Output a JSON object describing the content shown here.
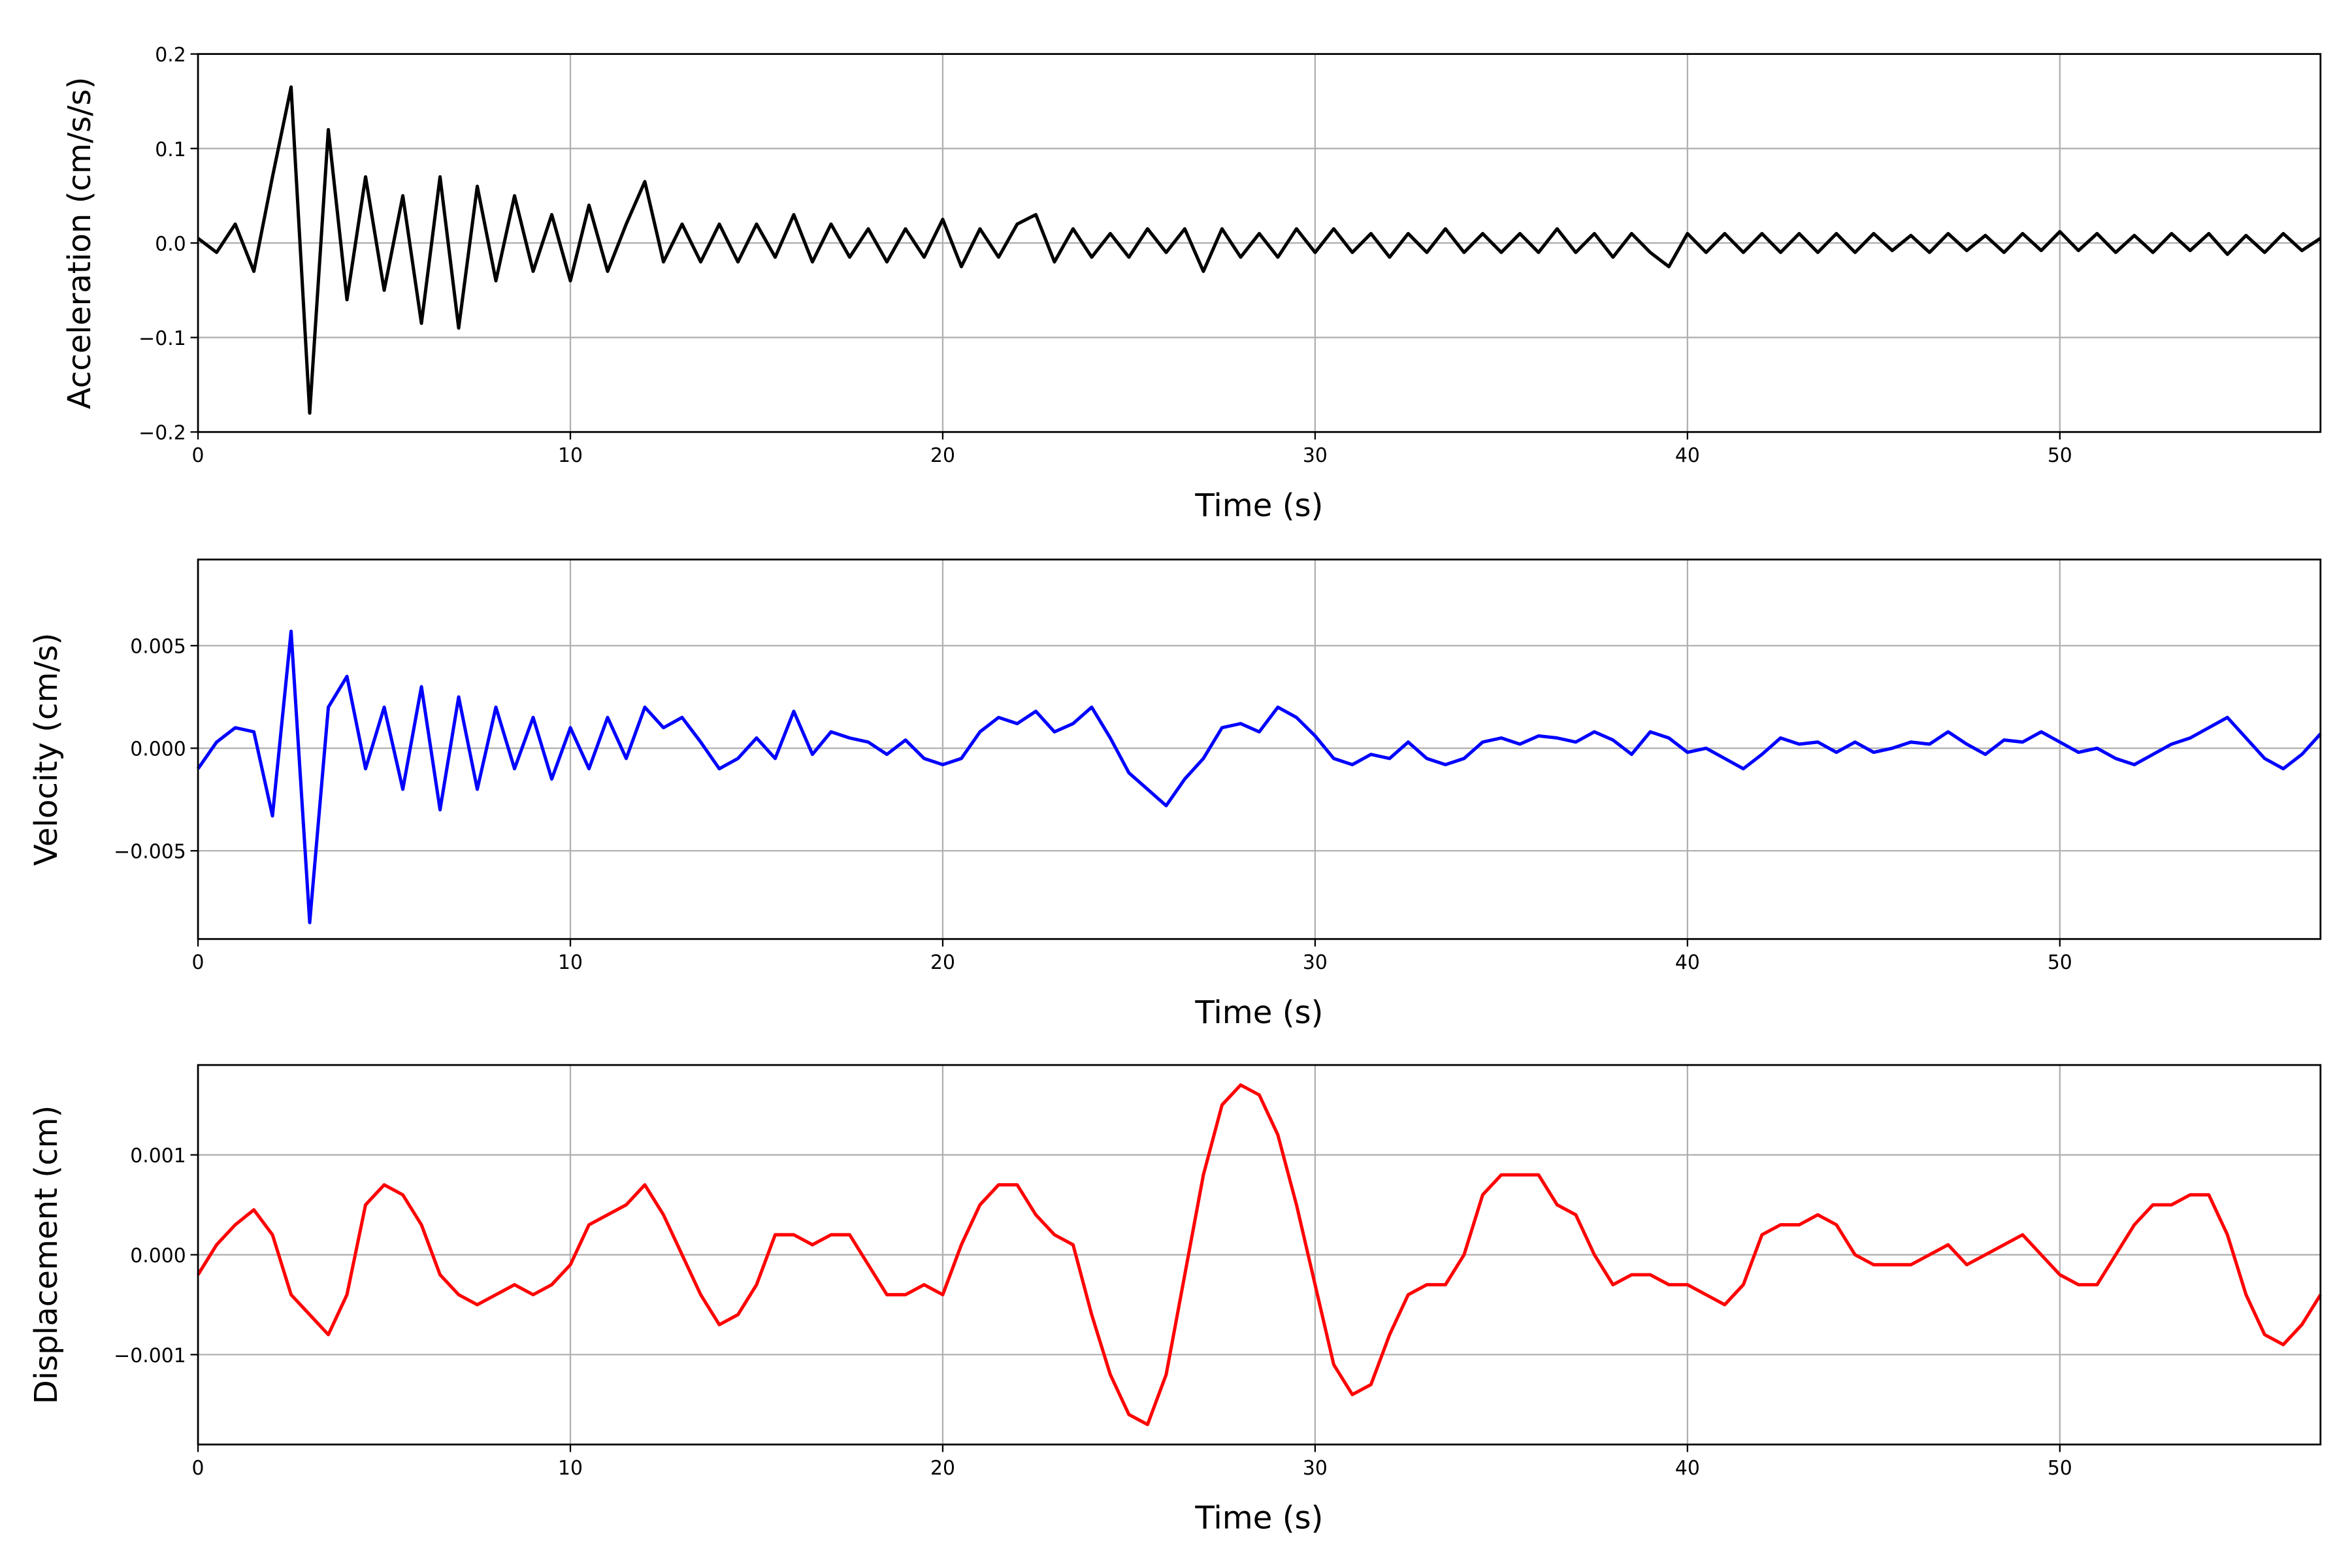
{
  "chart_data": [
    {
      "type": "line",
      "xlabel": "Time (s)",
      "ylabel": "Acceleration (cm/s/s)",
      "xlim": [
        0,
        57
      ],
      "xticks": [
        0,
        10,
        20,
        30,
        40,
        50
      ],
      "ylim": [
        -0.2,
        0.2
      ],
      "yticks": [
        {
          "value": -0.2,
          "label": "−0.2"
        },
        {
          "value": -0.1,
          "label": "−0.1"
        },
        {
          "value": 0,
          "label": "0.0"
        },
        0.1,
        0.2
      ],
      "grid": true,
      "x": [
        0,
        0.5,
        1,
        1.5,
        2,
        2.5,
        3,
        3.5,
        4,
        4.5,
        5,
        5.5,
        6,
        6.5,
        7,
        7.5,
        8,
        8.5,
        9,
        9.5,
        10,
        10.5,
        11,
        11.5,
        12,
        12.5,
        13,
        13.5,
        14,
        14.5,
        15,
        15.5,
        16,
        16.5,
        17,
        17.5,
        18,
        18.5,
        19,
        19.5,
        20,
        20.5,
        21,
        21.5,
        22,
        22.5,
        23,
        23.5,
        24,
        24.5,
        25,
        25.5,
        26,
        26.5,
        27,
        27.5,
        28,
        28.5,
        29,
        29.5,
        30,
        30.5,
        31,
        31.5,
        32,
        32.5,
        33,
        33.5,
        34,
        34.5,
        35,
        35.5,
        36,
        36.5,
        37,
        37.5,
        38,
        38.5,
        39,
        39.5,
        40,
        40.5,
        41,
        41.5,
        42,
        42.5,
        43,
        43.5,
        44,
        44.5,
        45,
        45.5,
        46,
        46.5,
        47,
        47.5,
        48,
        48.5,
        49,
        49.5,
        50,
        50.5,
        51,
        51.5,
        52,
        52.5,
        53,
        53.5,
        54,
        54.5,
        55,
        55.5,
        56,
        56.5,
        57
      ],
      "series": [
        {
          "color": "#000000",
          "values": [
            0.005,
            -0.01,
            0.02,
            -0.03,
            0.07,
            0.165,
            -0.18,
            0.12,
            -0.06,
            0.07,
            -0.05,
            0.05,
            -0.085,
            0.07,
            -0.09,
            0.06,
            -0.04,
            0.05,
            -0.03,
            0.03,
            -0.04,
            0.04,
            -0.03,
            0.02,
            0.065,
            -0.02,
            0.02,
            -0.02,
            0.02,
            -0.02,
            0.02,
            -0.015,
            0.03,
            -0.02,
            0.02,
            -0.015,
            0.015,
            -0.02,
            0.015,
            -0.015,
            0.025,
            -0.025,
            0.015,
            -0.015,
            0.02,
            0.03,
            -0.02,
            0.015,
            -0.015,
            0.01,
            -0.015,
            0.015,
            -0.01,
            0.015,
            -0.03,
            0.015,
            -0.015,
            0.01,
            -0.015,
            0.015,
            -0.01,
            0.015,
            -0.01,
            0.01,
            -0.015,
            0.01,
            -0.01,
            0.015,
            -0.01,
            0.01,
            -0.01,
            0.01,
            -0.01,
            0.015,
            -0.01,
            0.01,
            -0.015,
            0.01,
            -0.01,
            -0.025,
            0.01,
            -0.01,
            0.01,
            -0.01,
            0.01,
            -0.01,
            0.01,
            -0.01,
            0.01,
            -0.01,
            0.01,
            -0.008,
            0.008,
            -0.01,
            0.01,
            -0.008,
            0.008,
            -0.01,
            0.01,
            -0.008,
            0.012,
            -0.008,
            0.01,
            -0.01,
            0.008,
            -0.01,
            0.01,
            -0.008,
            0.01,
            -0.012,
            0.008,
            -0.01,
            0.01,
            -0.008,
            0.005
          ]
        }
      ]
    },
    {
      "type": "line",
      "xlabel": "Time (s)",
      "ylabel": "Velocity (cm/s)",
      "xlim": [
        0,
        57
      ],
      "xticks": [
        0,
        10,
        20,
        30,
        40,
        50
      ],
      "ylim": [
        -0.0093,
        0.0092
      ],
      "yticks": [
        {
          "value": -0.005,
          "label": "−0.005"
        },
        {
          "value": 0,
          "label": "0.000"
        },
        0.005
      ],
      "grid": true,
      "x": [
        0,
        0.5,
        1,
        1.5,
        2,
        2.5,
        3,
        3.5,
        4,
        4.5,
        5,
        5.5,
        6,
        6.5,
        7,
        7.5,
        8,
        8.5,
        9,
        9.5,
        10,
        10.5,
        11,
        11.5,
        12,
        12.5,
        13,
        13.5,
        14,
        14.5,
        15,
        15.5,
        16,
        16.5,
        17,
        17.5,
        18,
        18.5,
        19,
        19.5,
        20,
        20.5,
        21,
        21.5,
        22,
        22.5,
        23,
        23.5,
        24,
        24.5,
        25,
        25.5,
        26,
        26.5,
        27,
        27.5,
        28,
        28.5,
        29,
        29.5,
        30,
        30.5,
        31,
        31.5,
        32,
        32.5,
        33,
        33.5,
        34,
        34.5,
        35,
        35.5,
        36,
        36.5,
        37,
        37.5,
        38,
        38.5,
        39,
        39.5,
        40,
        40.5,
        41,
        41.5,
        42,
        42.5,
        43,
        43.5,
        44,
        44.5,
        45,
        45.5,
        46,
        46.5,
        47,
        47.5,
        48,
        48.5,
        49,
        49.5,
        50,
        50.5,
        51,
        51.5,
        52,
        52.5,
        53,
        53.5,
        54,
        54.5,
        55,
        55.5,
        56,
        56.5,
        57
      ],
      "series": [
        {
          "color": "#0000ff",
          "values": [
            -0.001,
            0.0003,
            0.001,
            0.0008,
            -0.0033,
            0.0057,
            -0.0085,
            0.002,
            0.0035,
            -0.001,
            0.002,
            -0.002,
            0.003,
            -0.003,
            0.0025,
            -0.002,
            0.002,
            -0.001,
            0.0015,
            -0.0015,
            0.001,
            -0.001,
            0.0015,
            -0.0005,
            0.002,
            0.001,
            0.0015,
            0.0003,
            -0.001,
            -0.0005,
            0.0005,
            -0.0005,
            0.0018,
            -0.0003,
            0.0008,
            0.0005,
            0.0003,
            -0.0003,
            0.0004,
            -0.0005,
            -0.0008,
            -0.0005,
            0.0008,
            0.0015,
            0.0012,
            0.0018,
            0.0008,
            0.0012,
            0.002,
            0.0005,
            -0.0012,
            -0.002,
            -0.0028,
            -0.0015,
            -0.0005,
            0.001,
            0.0012,
            0.0008,
            0.002,
            0.0015,
            0.0006,
            -0.0005,
            -0.0008,
            -0.0003,
            -0.0005,
            0.0003,
            -0.0005,
            -0.0008,
            -0.0005,
            0.0003,
            0.0005,
            0.0002,
            0.0006,
            0.0005,
            0.0003,
            0.0008,
            0.0004,
            -0.0003,
            0.0008,
            0.0005,
            -0.0002,
            0,
            -0.0005,
            -0.001,
            -0.0003,
            0.0005,
            0.0002,
            0.0003,
            -0.0002,
            0.0003,
            -0.0002,
            0,
            0.0003,
            0.0002,
            0.0008,
            0.0002,
            -0.0003,
            0.0004,
            0.0003,
            0.0008,
            0.0003,
            -0.0002,
            0,
            -0.0005,
            -0.0008,
            -0.0003,
            0.0002,
            0.0005,
            0.001,
            0.0015,
            0.0005,
            -0.0005,
            -0.001,
            -0.0003,
            0.0007
          ]
        }
      ]
    },
    {
      "type": "line",
      "xlabel": "Time (s)",
      "ylabel": "Displacement (cm)",
      "xlim": [
        0,
        57
      ],
      "xticks": [
        0,
        10,
        20,
        30,
        40,
        50
      ],
      "ylim": [
        -0.0019,
        0.0019
      ],
      "yticks": [
        {
          "value": -0.001,
          "label": "−0.001"
        },
        {
          "value": 0,
          "label": "0.000"
        },
        0.001
      ],
      "grid": true,
      "x": [
        0,
        0.5,
        1,
        1.5,
        2,
        2.5,
        3,
        3.5,
        4,
        4.5,
        5,
        5.5,
        6,
        6.5,
        7,
        7.5,
        8,
        8.5,
        9,
        9.5,
        10,
        10.5,
        11,
        11.5,
        12,
        12.5,
        13,
        13.5,
        14,
        14.5,
        15,
        15.5,
        16,
        16.5,
        17,
        17.5,
        18,
        18.5,
        19,
        19.5,
        20,
        20.5,
        21,
        21.5,
        22,
        22.5,
        23,
        23.5,
        24,
        24.5,
        25,
        25.5,
        26,
        26.5,
        27,
        27.5,
        28,
        28.5,
        29,
        29.5,
        30,
        30.5,
        31,
        31.5,
        32,
        32.5,
        33,
        33.5,
        34,
        34.5,
        35,
        35.5,
        36,
        36.5,
        37,
        37.5,
        38,
        38.5,
        39,
        39.5,
        40,
        40.5,
        41,
        41.5,
        42,
        42.5,
        43,
        43.5,
        44,
        44.5,
        45,
        45.5,
        46,
        46.5,
        47,
        47.5,
        48,
        48.5,
        49,
        49.5,
        50,
        50.5,
        51,
        51.5,
        52,
        52.5,
        53,
        53.5,
        54,
        54.5,
        55,
        55.5,
        56,
        56.5,
        57
      ],
      "series": [
        {
          "color": "#ff0000",
          "values": [
            -0.0002,
            0.0001,
            0.0003,
            0.00045,
            0.0002,
            -0.0004,
            -0.0006,
            -0.0008,
            -0.0004,
            0.0005,
            0.0007,
            0.0006,
            0.0003,
            -0.0002,
            -0.0004,
            -0.0005,
            -0.0004,
            -0.0003,
            -0.0004,
            -0.0003,
            -0.0001,
            0.0003,
            0.0004,
            0.0005,
            0.0007,
            0.0004,
            0,
            -0.0004,
            -0.0007,
            -0.0006,
            -0.0003,
            0.0002,
            0.0002,
            0.0001,
            0.0002,
            0.0002,
            -0.0001,
            -0.0004,
            -0.0004,
            -0.0003,
            -0.0004,
            0.0001,
            0.0005,
            0.0007,
            0.0007,
            0.0004,
            0.0002,
            0.0001,
            -0.0006,
            -0.0012,
            -0.0016,
            -0.0017,
            -0.0012,
            -0.0002,
            0.0008,
            0.0015,
            0.0017,
            0.0016,
            0.0012,
            0.0005,
            -0.0003,
            -0.0011,
            -0.0014,
            -0.0013,
            -0.0008,
            -0.0004,
            -0.0003,
            -0.0003,
            0,
            0.0006,
            0.0008,
            0.0008,
            0.0008,
            0.0005,
            0.0004,
            0,
            -0.0003,
            -0.0002,
            -0.0002,
            -0.0003,
            -0.0003,
            -0.0004,
            -0.0005,
            -0.0003,
            0.0002,
            0.0003,
            0.0003,
            0.0004,
            0.0003,
            0,
            -0.0001,
            -0.0001,
            -0.0001,
            0,
            0.0001,
            -0.0001,
            0,
            0.0001,
            0.0002,
            0,
            -0.0002,
            -0.0003,
            -0.0003,
            0,
            0.0003,
            0.0005,
            0.0005,
            0.0006,
            0.0006,
            0.0002,
            -0.0004,
            -0.0008,
            -0.0009,
            -0.0007,
            -0.0004
          ]
        }
      ]
    }
  ]
}
